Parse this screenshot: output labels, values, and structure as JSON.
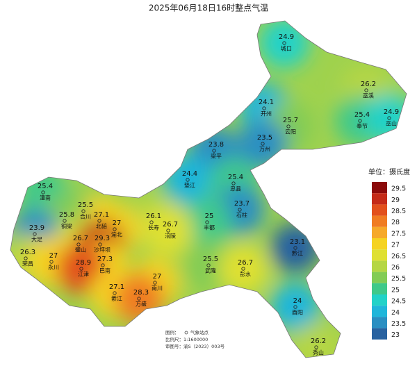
{
  "title": "2025年06月18日16时整点气温",
  "stations": [
    {
      "name": "城口",
      "value": 24.9
    },
    {
      "name": "巫溪",
      "value": 26.2
    },
    {
      "name": "开州",
      "value": 24.1
    },
    {
      "name": "云阳",
      "value": 25.7
    },
    {
      "name": "奉节",
      "value": 25.4
    },
    {
      "name": "巫山",
      "value": 24.9
    },
    {
      "name": "万州",
      "value": 23.5
    },
    {
      "name": "梁平",
      "value": 23.8
    },
    {
      "name": "垫江",
      "value": 24.4
    },
    {
      "name": "忠县",
      "value": 25.4
    },
    {
      "name": "潼南",
      "value": 25.4
    },
    {
      "name": "石柱",
      "value": 23.7
    },
    {
      "name": "合川",
      "value": 25.5
    },
    {
      "name": "北碚",
      "value": 27.1
    },
    {
      "name": "铜梁",
      "value": 25.8
    },
    {
      "name": "长寿",
      "value": 26.1
    },
    {
      "name": "丰都",
      "value": 25
    },
    {
      "name": "涪陵",
      "value": 26.7
    },
    {
      "name": "大足",
      "value": 23.9
    },
    {
      "name": "渝北",
      "value": 27
    },
    {
      "name": "璧山",
      "value": 26.7
    },
    {
      "name": "沙坪坝",
      "value": 29.3
    },
    {
      "name": "黔江",
      "value": 23.1
    },
    {
      "name": "荣昌",
      "value": 26.3
    },
    {
      "name": "永川",
      "value": 27
    },
    {
      "name": "巴南",
      "value": 27.3
    },
    {
      "name": "江津",
      "value": 28.9
    },
    {
      "name": "武隆",
      "value": 25.5
    },
    {
      "name": "彭水",
      "value": 26.7
    },
    {
      "name": "南川",
      "value": 27
    },
    {
      "name": "綦江",
      "value": 27.1
    },
    {
      "name": "万盛",
      "value": 28.3
    },
    {
      "name": "酉阳",
      "value": 24
    },
    {
      "name": "秀山",
      "value": 26.2
    }
  ],
  "legend": {
    "title": "单位：摄氏度",
    "items": [
      {
        "value": 29.5,
        "color": "#8b0a0a"
      },
      {
        "value": 29,
        "color": "#c42a18"
      },
      {
        "value": 28.5,
        "color": "#e2501c"
      },
      {
        "value": 28,
        "color": "#f07c22"
      },
      {
        "value": 27.5,
        "color": "#f6a92a"
      },
      {
        "value": 27,
        "color": "#f5d322"
      },
      {
        "value": 26.5,
        "color": "#dfe032"
      },
      {
        "value": 26,
        "color": "#b5d644"
      },
      {
        "value": 25.5,
        "color": "#82cc55"
      },
      {
        "value": 25,
        "color": "#3fc98a"
      },
      {
        "value": 24.5,
        "color": "#22d2c8"
      },
      {
        "value": 24,
        "color": "#1fb6da"
      },
      {
        "value": 23.5,
        "color": "#2a8fc2"
      },
      {
        "value": 23,
        "color": "#2862a0"
      }
    ]
  },
  "footer": {
    "legend_label": "图例：",
    "legend_item": "气象站点",
    "scale": "比例尺：1:1600000",
    "approval": "审图号：渝S（2023）003号"
  }
}
